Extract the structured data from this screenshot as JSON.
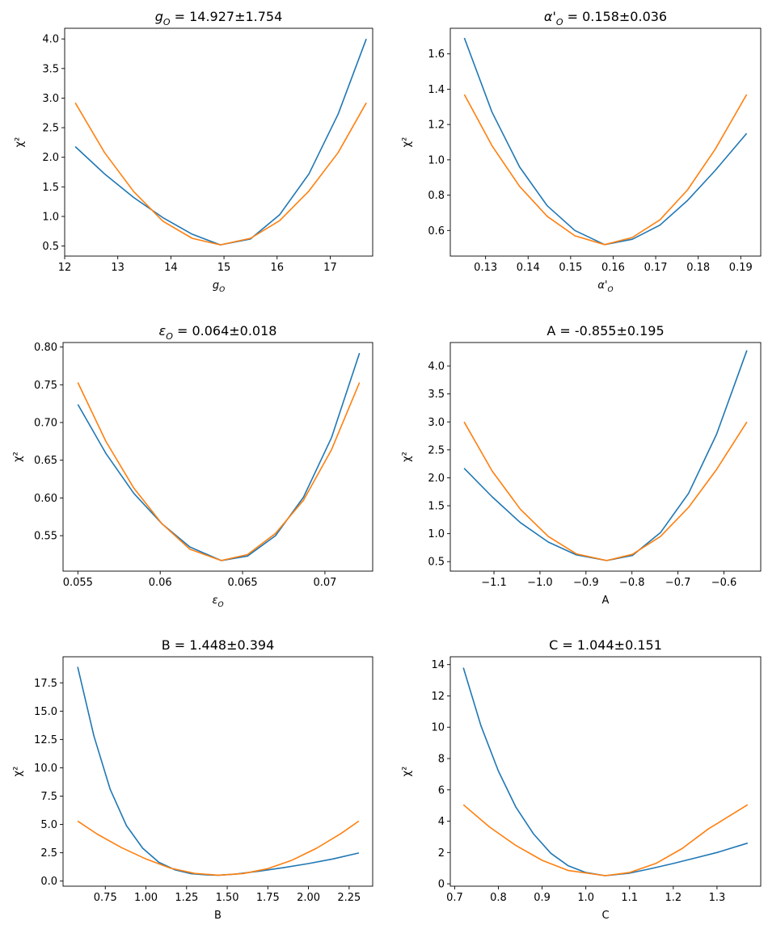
{
  "colors": {
    "series1": "#1f77b4",
    "series2": "#ff7f0e"
  },
  "chart_data": [
    {
      "type": "line",
      "title": "g_O = 14.927±1.754",
      "xlabel": "g_O",
      "ylabel": "χ²",
      "xlim": [
        12.0,
        17.8
      ],
      "ylim": [
        0.33,
        4.18
      ],
      "xticks": [
        12,
        13,
        14,
        15,
        16,
        17
      ],
      "yticks": [
        0.5,
        1.0,
        1.5,
        2.0,
        2.5,
        3.0,
        3.5,
        4.0
      ],
      "xtick_labels": [
        "12",
        "13",
        "14",
        "15",
        "16",
        "17"
      ],
      "ytick_labels": [
        "0.5",
        "1.0",
        "1.5",
        "2.0",
        "2.5",
        "3.0",
        "3.5",
        "4.0"
      ],
      "series": [
        {
          "x": [
            12.2,
            12.75,
            13.3,
            13.85,
            14.4,
            14.93,
            15.5,
            16.05,
            16.6,
            17.15,
            17.68
          ],
          "y": [
            2.18,
            1.72,
            1.32,
            0.98,
            0.7,
            0.52,
            0.62,
            1.03,
            1.72,
            2.73,
            4.0
          ]
        },
        {
          "x": [
            12.2,
            12.75,
            13.3,
            13.85,
            14.4,
            14.93,
            15.5,
            16.05,
            16.6,
            17.15,
            17.68
          ],
          "y": [
            2.92,
            2.08,
            1.42,
            0.92,
            0.63,
            0.52,
            0.63,
            0.93,
            1.43,
            2.08,
            2.92
          ]
        }
      ]
    },
    {
      "type": "line",
      "title": "α'_O = 0.158±0.036",
      "xlabel": "α'_O",
      "ylabel": "χ²",
      "xlim": [
        0.1217,
        0.1947
      ],
      "ylim": [
        0.455,
        1.745
      ],
      "xticks": [
        0.13,
        0.14,
        0.15,
        0.16,
        0.17,
        0.18,
        0.19
      ],
      "yticks": [
        0.6,
        0.8,
        1.0,
        1.2,
        1.4,
        1.6
      ],
      "xtick_labels": [
        "0.13",
        "0.14",
        "0.15",
        "0.16",
        "0.17",
        "0.18",
        "0.19"
      ],
      "ytick_labels": [
        "0.6",
        "0.8",
        "1.0",
        "1.2",
        "1.4",
        "1.6"
      ],
      "series": [
        {
          "x": [
            0.125,
            0.1315,
            0.138,
            0.1445,
            0.151,
            0.158,
            0.1645,
            0.171,
            0.1775,
            0.184,
            0.1914
          ],
          "y": [
            1.69,
            1.27,
            0.96,
            0.74,
            0.6,
            0.52,
            0.55,
            0.63,
            0.77,
            0.94,
            1.15
          ]
        },
        {
          "x": [
            0.125,
            0.1315,
            0.138,
            0.1445,
            0.151,
            0.158,
            0.1645,
            0.171,
            0.1775,
            0.184,
            0.1914
          ],
          "y": [
            1.37,
            1.08,
            0.85,
            0.68,
            0.57,
            0.52,
            0.56,
            0.66,
            0.83,
            1.06,
            1.37
          ]
        }
      ]
    },
    {
      "type": "line",
      "title": "ε_O = 0.064±0.018",
      "xlabel": "ε_O",
      "ylabel": "χ²",
      "xlim": [
        0.0541,
        0.0729
      ],
      "ylim": [
        0.503,
        0.806
      ],
      "xticks": [
        0.055,
        0.06,
        0.065,
        0.07
      ],
      "yticks": [
        0.55,
        0.6,
        0.65,
        0.7,
        0.75,
        0.8
      ],
      "xtick_labels": [
        "0.055",
        "0.06",
        "0.065",
        "0.07"
      ],
      "ytick_labels": [
        "0.55",
        "0.60",
        "0.65",
        "0.70",
        "0.75",
        "0.80"
      ],
      "series": [
        {
          "x": [
            0.055,
            0.0567,
            0.0584,
            0.0601,
            0.0618,
            0.0637,
            0.0653,
            0.067,
            0.0687,
            0.0704,
            0.0721
          ],
          "y": [
            0.724,
            0.659,
            0.606,
            0.566,
            0.535,
            0.517,
            0.523,
            0.55,
            0.601,
            0.68,
            0.792
          ]
        },
        {
          "x": [
            0.055,
            0.0567,
            0.0584,
            0.0601,
            0.0618,
            0.0637,
            0.0653,
            0.067,
            0.0687,
            0.0704,
            0.0721
          ],
          "y": [
            0.753,
            0.675,
            0.613,
            0.566,
            0.532,
            0.517,
            0.525,
            0.553,
            0.597,
            0.664,
            0.753
          ]
        }
      ]
    },
    {
      "type": "line",
      "title": "A = -0.855±0.195",
      "xlabel": "A",
      "ylabel": "χ²",
      "xlim": [
        -1.195,
        -0.52
      ],
      "ylim": [
        0.33,
        4.42
      ],
      "xticks": [
        -1.1,
        -1.0,
        -0.9,
        -0.8,
        -0.7,
        -0.6
      ],
      "yticks": [
        0.5,
        1.0,
        1.5,
        2.0,
        2.5,
        3.0,
        3.5,
        4.0
      ],
      "xtick_labels": [
        "−1.1",
        "−1.0",
        "−0.9",
        "−0.8",
        "−0.7",
        "−0.6"
      ],
      "ytick_labels": [
        "0.5",
        "1.0",
        "1.5",
        "2.0",
        "2.5",
        "3.0",
        "3.5",
        "4.0"
      ],
      "series": [
        {
          "x": [
            -1.165,
            -1.104,
            -1.043,
            -0.982,
            -0.921,
            -0.855,
            -0.799,
            -0.738,
            -0.677,
            -0.616,
            -0.55
          ],
          "y": [
            2.17,
            1.66,
            1.2,
            0.85,
            0.62,
            0.52,
            0.61,
            1.02,
            1.72,
            2.78,
            4.28
          ]
        },
        {
          "x": [
            -1.165,
            -1.104,
            -1.043,
            -0.982,
            -0.921,
            -0.855,
            -0.799,
            -0.738,
            -0.677,
            -0.616,
            -0.55
          ],
          "y": [
            3.0,
            2.12,
            1.44,
            0.95,
            0.64,
            0.52,
            0.63,
            0.95,
            1.47,
            2.15,
            3.0
          ]
        }
      ]
    },
    {
      "type": "line",
      "title": "B = 1.448±0.394",
      "xlabel": "B",
      "ylabel": "χ²",
      "xlim": [
        0.49,
        2.395
      ],
      "ylim": [
        -0.45,
        19.8
      ],
      "xticks": [
        0.75,
        1.0,
        1.25,
        1.5,
        1.75,
        2.0,
        2.25
      ],
      "yticks": [
        0.0,
        2.5,
        5.0,
        7.5,
        10.0,
        12.5,
        15.0,
        17.5
      ],
      "xtick_labels": [
        "0.75",
        "1.00",
        "1.25",
        "1.50",
        "1.75",
        "2.00",
        "2.25"
      ],
      "ytick_labels": [
        "0.0",
        "2.5",
        "5.0",
        "7.5",
        "10.0",
        "12.5",
        "15.0",
        "17.5"
      ],
      "series": [
        {
          "x": [
            0.58,
            0.68,
            0.78,
            0.88,
            0.98,
            1.08,
            1.18,
            1.28,
            1.38,
            1.448,
            1.55,
            1.7,
            1.85,
            2.0,
            2.15,
            2.31
          ],
          "y": [
            18.9,
            12.8,
            8.1,
            4.9,
            2.9,
            1.65,
            0.98,
            0.65,
            0.54,
            0.52,
            0.61,
            0.88,
            1.2,
            1.55,
            1.95,
            2.48
          ]
        },
        {
          "x": [
            0.58,
            0.7,
            0.85,
            1.0,
            1.15,
            1.3,
            1.448,
            1.6,
            1.75,
            1.9,
            2.05,
            2.2,
            2.31
          ],
          "y": [
            5.3,
            4.15,
            2.95,
            1.95,
            1.15,
            0.68,
            0.52,
            0.67,
            1.1,
            1.85,
            2.9,
            4.2,
            5.3
          ]
        }
      ]
    },
    {
      "type": "line",
      "title": "C = 1.044±0.151",
      "xlabel": "C",
      "ylabel": "χ²",
      "xlim": [
        0.69,
        1.4
      ],
      "ylim": [
        -0.15,
        14.5
      ],
      "xticks": [
        0.7,
        0.8,
        0.9,
        1.0,
        1.1,
        1.2,
        1.3
      ],
      "yticks": [
        0,
        2,
        4,
        6,
        8,
        10,
        12,
        14
      ],
      "xtick_labels": [
        "0.7",
        "0.8",
        "0.9",
        "1.0",
        "1.1",
        "1.2",
        "1.3"
      ],
      "ytick_labels": [
        "0",
        "2",
        "4",
        "6",
        "8",
        "10",
        "12",
        "14"
      ],
      "series": [
        {
          "x": [
            0.72,
            0.76,
            0.8,
            0.84,
            0.88,
            0.92,
            0.96,
            1.0,
            1.044,
            1.1,
            1.15,
            1.2,
            1.25,
            1.3,
            1.37
          ],
          "y": [
            13.8,
            10.1,
            7.2,
            4.9,
            3.2,
            1.95,
            1.15,
            0.72,
            0.52,
            0.68,
            0.98,
            1.3,
            1.65,
            2.0,
            2.6
          ]
        },
        {
          "x": [
            0.72,
            0.78,
            0.84,
            0.9,
            0.96,
            1.044,
            1.1,
            1.16,
            1.22,
            1.28,
            1.37
          ],
          "y": [
            5.05,
            3.62,
            2.45,
            1.5,
            0.85,
            0.52,
            0.72,
            1.3,
            2.25,
            3.5,
            5.05
          ]
        }
      ]
    }
  ]
}
